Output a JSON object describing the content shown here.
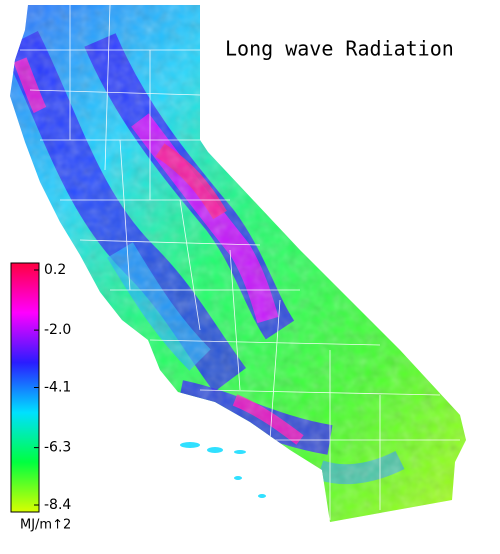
{
  "title": "Long wave Radiation",
  "colorbar": {
    "colors": [
      "#ff0040",
      "#ff00ff",
      "#2a1cff",
      "#00e0ff",
      "#00ff40",
      "#d8ff00"
    ],
    "ticks": [
      0.2,
      {
        "value": -2.0,
        "label": "-2.0"
      },
      -4.1,
      -6.3,
      -8.4
    ],
    "unit": "MJ/m↑2"
  }
}
